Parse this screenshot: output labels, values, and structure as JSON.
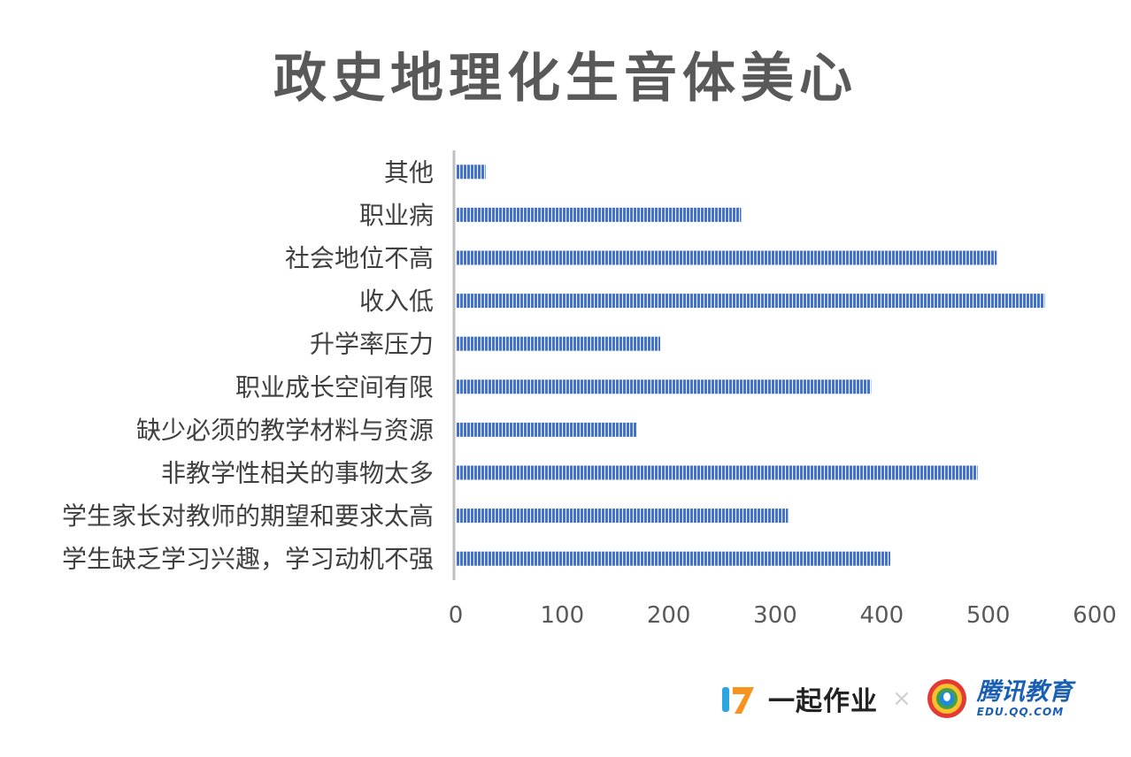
{
  "chart_data": {
    "type": "bar",
    "orientation": "horizontal",
    "title": "政史地理化生音体美心",
    "categories": [
      "其他",
      "职业病",
      "社会地位不高",
      "收入低",
      "升学率压力",
      "职业成长空间有限",
      "缺少必须的教学材料与资源",
      "非教学性相关的事物太多",
      "学生家长对教师的期望和要求太高",
      "学生缺乏学习兴趣，学习动机不强"
    ],
    "values": [
      28,
      268,
      508,
      553,
      192,
      390,
      170,
      490,
      312,
      408
    ],
    "xlim": [
      0,
      600
    ],
    "xticks": [
      "0",
      "100",
      "200",
      "300",
      "400",
      "500",
      "600"
    ],
    "grid": false,
    "bar_color": "#4472C4"
  },
  "footer": {
    "brand1": "一起作业",
    "separator": "×",
    "brand2": "腾讯教育",
    "brand2_sub": "EDU.QQ.COM"
  }
}
